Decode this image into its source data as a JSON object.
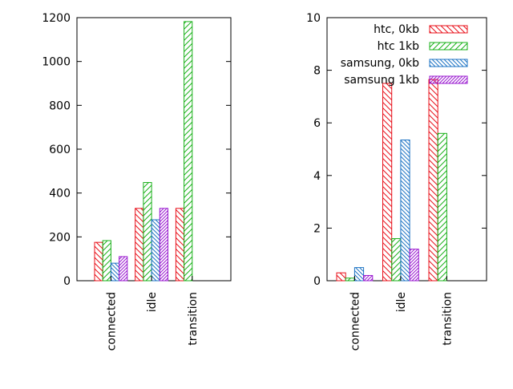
{
  "chart_data": [
    {
      "type": "bar",
      "categories": [
        "connected",
        "idle",
        "transition"
      ],
      "ylim": [
        0,
        1200
      ],
      "yticks": [
        "0",
        "200",
        "400",
        "600",
        "800",
        "1000",
        "1200"
      ],
      "series": [
        {
          "name": "htc, 0kb",
          "values": [
            175,
            330,
            330
          ],
          "color": "#e8101a",
          "pattern": "back-diagonal"
        },
        {
          "name": "htc 1kb",
          "values": [
            183,
            448,
            1182
          ],
          "color": "#1ab11a",
          "pattern": "forward-diagonal"
        },
        {
          "name": "samsung, 0kb",
          "values": [
            80,
            278,
            null
          ],
          "color": "#1f74c4",
          "pattern": "steep-back-diagonal"
        },
        {
          "name": "samsung 1kb",
          "values": [
            110,
            330,
            null
          ],
          "color": "#9a1ad0",
          "pattern": "dense-forward-diagonal"
        }
      ],
      "legend": "none"
    },
    {
      "type": "bar",
      "categories": [
        "connected",
        "idle",
        "transition"
      ],
      "ylim": [
        0,
        10
      ],
      "yticks": [
        "0",
        "2",
        "4",
        "6",
        "8",
        "10"
      ],
      "series": [
        {
          "name": "htc, 0kb",
          "values": [
            0.3,
            7.5,
            7.65
          ],
          "color": "#e8101a",
          "pattern": "back-diagonal"
        },
        {
          "name": "htc 1kb",
          "values": [
            0.1,
            1.6,
            5.6
          ],
          "color": "#1ab11a",
          "pattern": "forward-diagonal"
        },
        {
          "name": "samsung, 0kb",
          "values": [
            0.5,
            5.35,
            null
          ],
          "color": "#1f74c4",
          "pattern": "steep-back-diagonal"
        },
        {
          "name": "samsung 1kb",
          "values": [
            0.2,
            1.2,
            null
          ],
          "color": "#9a1ad0",
          "pattern": "dense-forward-diagonal"
        }
      ],
      "legend": "top-right"
    }
  ]
}
